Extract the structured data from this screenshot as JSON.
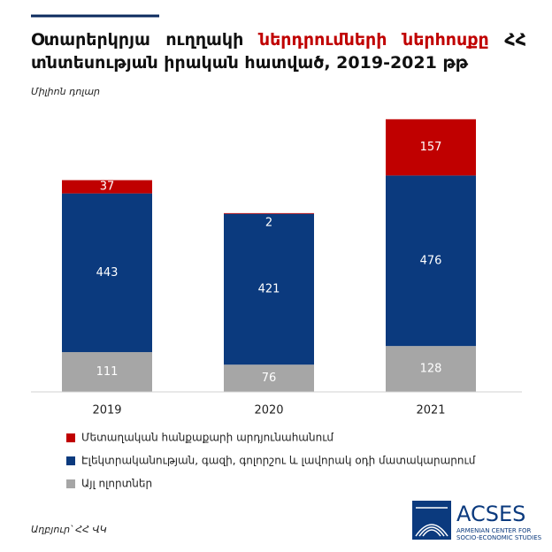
{
  "chart_data": {
    "type": "stacked-bar",
    "title": [
      "Օտարերկրյա ուղղակի",
      "ներդրումների ներհոսքը",
      "ՀՀ տնտեսության իրական հատված, 2019-2021 թթ"
    ],
    "title_highlight_color": "#c00000",
    "units": "Միլիոն դոլար",
    "categories": [
      "2019",
      "2020",
      "2021"
    ],
    "series": [
      {
        "name": "Այլ ոլորտներ",
        "color": "#a6a6a6",
        "values": [
          111,
          76,
          128
        ]
      },
      {
        "name": "Էլեկտրականության, գազի, գոլորշու և լավորակ օդի մատակարարում",
        "color": "#0b3a7e",
        "values": [
          443,
          421,
          476
        ]
      },
      {
        "name": "Մետաղական հանքաքարի արդյունահանում",
        "color": "#c00000",
        "values": [
          37,
          2,
          157
        ]
      }
    ],
    "ylim": [
      0,
      800
    ],
    "source": "Աղբյուր՝ ՀՀ ՎԿ"
  },
  "logo": {
    "name": "ACSES",
    "subtitle": [
      "ARMENIAN CENTER FOR",
      "SOCIO-ECONOMIC STUDIES"
    ]
  }
}
